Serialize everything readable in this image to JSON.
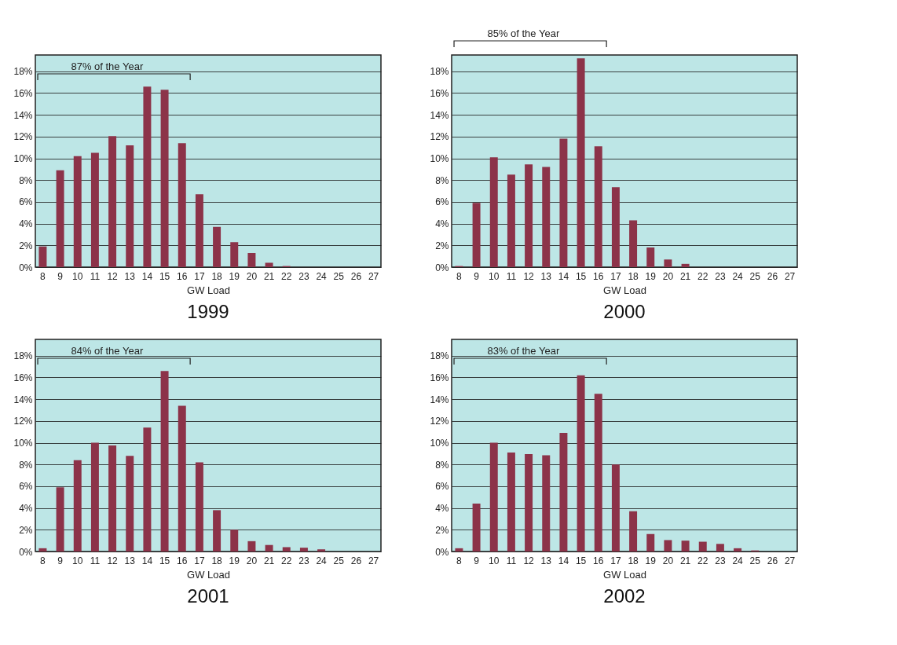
{
  "chart_data": [
    {
      "type": "bar",
      "title": "1999",
      "xlabel": "GW Load",
      "categories": [
        "8",
        "9",
        "10",
        "11",
        "12",
        "13",
        "14",
        "15",
        "16",
        "17",
        "18",
        "19",
        "20",
        "21",
        "22",
        "23",
        "24",
        "25",
        "26",
        "27"
      ],
      "values": [
        1.9,
        8.9,
        10.2,
        10.5,
        12.05,
        11.2,
        16.6,
        16.3,
        11.4,
        6.7,
        3.7,
        2.3,
        1.3,
        0.4,
        0.1,
        0,
        0,
        0,
        0,
        0
      ],
      "color": "#8c3349",
      "ylim": [
        0,
        19.5
      ],
      "yticks": [
        {
          "value": 0,
          "label": "0%"
        },
        {
          "value": 2,
          "label": "2%"
        },
        {
          "value": 4,
          "label": "4%"
        },
        {
          "value": 6,
          "label": "6%"
        },
        {
          "value": 8,
          "label": "8%"
        },
        {
          "value": 10,
          "label": "10%"
        },
        {
          "value": 12,
          "label": "12%"
        },
        {
          "value": 14,
          "label": "14%"
        },
        {
          "value": 16,
          "label": "16%"
        },
        {
          "value": 18,
          "label": "18%"
        }
      ],
      "grid": "y",
      "annotations": [
        "87% of the Year"
      ]
    },
    {
      "type": "bar",
      "title": "2000",
      "xlabel": "GW Load",
      "categories": [
        "8",
        "9",
        "10",
        "11",
        "12",
        "13",
        "14",
        "15",
        "16",
        "17",
        "18",
        "19",
        "20",
        "21",
        "22",
        "23",
        "24",
        "25",
        "26",
        "27"
      ],
      "values": [
        0.1,
        5.9,
        10.1,
        8.5,
        9.45,
        9.2,
        11.8,
        19.2,
        11.1,
        7.35,
        4.3,
        1.8,
        0.7,
        0.3,
        0,
        0,
        0,
        0,
        0,
        0
      ],
      "color": "#8c3349",
      "ylim": [
        0,
        19.5
      ],
      "yticks": [
        {
          "value": 0,
          "label": "0%"
        },
        {
          "value": 2,
          "label": "2%"
        },
        {
          "value": 4,
          "label": "4%"
        },
        {
          "value": 6,
          "label": "6%"
        },
        {
          "value": 8,
          "label": "8%"
        },
        {
          "value": 10,
          "label": "10%"
        },
        {
          "value": 12,
          "label": "12%"
        },
        {
          "value": 14,
          "label": "14%"
        },
        {
          "value": 16,
          "label": "16%"
        },
        {
          "value": 18,
          "label": "18%"
        }
      ],
      "grid": "y",
      "annotations": [
        "85% of the Year"
      ]
    },
    {
      "type": "bar",
      "title": "2001",
      "xlabel": "GW Load",
      "categories": [
        "8",
        "9",
        "10",
        "11",
        "12",
        "13",
        "14",
        "15",
        "16",
        "17",
        "18",
        "19",
        "20",
        "21",
        "22",
        "23",
        "24",
        "25",
        "26",
        "27"
      ],
      "values": [
        0.3,
        5.9,
        8.4,
        10.0,
        9.75,
        8.8,
        11.4,
        16.6,
        13.4,
        8.2,
        3.8,
        2.0,
        0.95,
        0.6,
        0.4,
        0.35,
        0.2,
        0,
        0,
        0
      ],
      "color": "#8c3349",
      "ylim": [
        0,
        19.5
      ],
      "yticks": [
        {
          "value": 0,
          "label": "0%"
        },
        {
          "value": 2,
          "label": "2%"
        },
        {
          "value": 4,
          "label": "4%"
        },
        {
          "value": 6,
          "label": "6%"
        },
        {
          "value": 8,
          "label": "8%"
        },
        {
          "value": 10,
          "label": "10%"
        },
        {
          "value": 12,
          "label": "12%"
        },
        {
          "value": 14,
          "label": "14%"
        },
        {
          "value": 16,
          "label": "16%"
        },
        {
          "value": 18,
          "label": "18%"
        }
      ],
      "grid": "y",
      "annotations": [
        "84% of the Year"
      ]
    },
    {
      "type": "bar",
      "title": "2002",
      "xlabel": "GW Load",
      "categories": [
        "8",
        "9",
        "10",
        "11",
        "12",
        "13",
        "14",
        "15",
        "16",
        "17",
        "18",
        "19",
        "20",
        "21",
        "22",
        "23",
        "24",
        "25",
        "26",
        "27"
      ],
      "values": [
        0.3,
        4.4,
        10.0,
        9.1,
        8.95,
        8.85,
        10.9,
        16.2,
        14.5,
        8.0,
        3.7,
        1.6,
        1.05,
        1.0,
        0.9,
        0.7,
        0.3,
        0.1,
        0,
        0
      ],
      "color": "#8c3349",
      "ylim": [
        0,
        19.5
      ],
      "yticks": [
        {
          "value": 0,
          "label": "0%"
        },
        {
          "value": 2,
          "label": "2%"
        },
        {
          "value": 4,
          "label": "4%"
        },
        {
          "value": 6,
          "label": "6%"
        },
        {
          "value": 8,
          "label": "8%"
        },
        {
          "value": 10,
          "label": "10%"
        },
        {
          "value": 12,
          "label": "12%"
        },
        {
          "value": 14,
          "label": "14%"
        },
        {
          "value": 16,
          "label": "16%"
        },
        {
          "value": 18,
          "label": "18%"
        }
      ],
      "grid": "y",
      "annotations": [
        "83% of the Year"
      ]
    }
  ]
}
